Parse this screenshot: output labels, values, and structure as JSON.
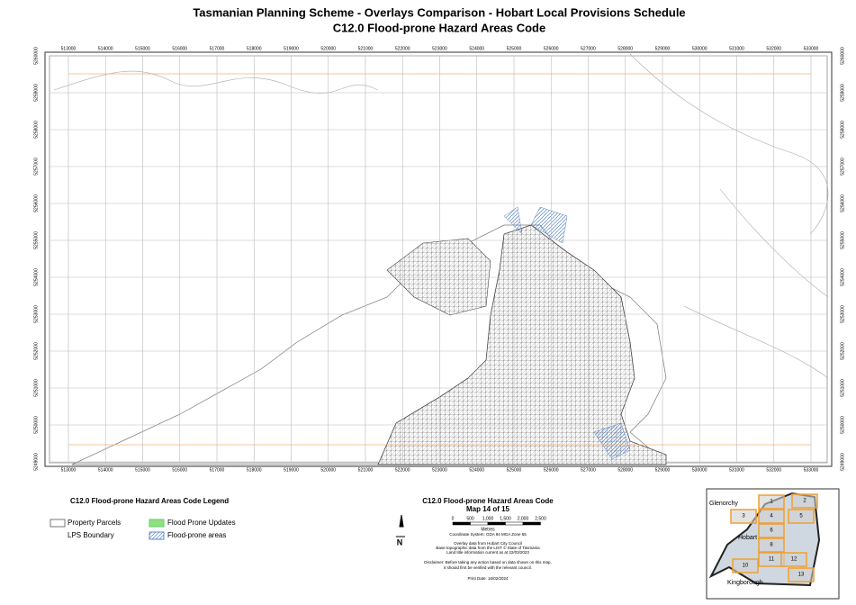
{
  "header": {
    "title": "Tasmanian Planning Scheme - Overlays Comparison - Hobart Local Provisions Schedule",
    "subtitle": "C12.0 Flood-prone Hazard Areas Code"
  },
  "map": {
    "x_labels": [
      "513000",
      "514000",
      "515000",
      "516000",
      "517000",
      "518000",
      "519000",
      "520000",
      "521000",
      "522000",
      "523000",
      "524000",
      "525000",
      "526000",
      "527000",
      "528000",
      "529000",
      "530000",
      "531000",
      "532000",
      "533000"
    ],
    "y_labels": [
      "5260000",
      "5259000",
      "5258000",
      "5257000",
      "5256000",
      "5255000",
      "5254000",
      "5253000",
      "5252000",
      "5251000",
      "5250000",
      "5249000"
    ]
  },
  "legend": {
    "title": "C12.0 Flood-prone Hazard Areas Code Legend",
    "items": [
      "Property Parcels",
      "LPS Boundary",
      "Flood Prone Updates",
      "Flood-prone areas"
    ]
  },
  "info": {
    "title": "C12.0 Flood-prone Hazard Areas Code",
    "map_number": "Map 14 of 15",
    "scale_labels": [
      "0",
      "500",
      "1,000",
      "1,500",
      "2,000",
      "2,500"
    ],
    "scale_unit": "Metres",
    "north": "N",
    "lines": [
      "Coordinate System: GDA 94 MGA Zone 55",
      "Overlay data from Hobart City Council",
      "Base topographic data from the LIST © State of Tasmania",
      "Land title information current as at 22/03/2023",
      "Disclaimer: Before taking any action based on data shown on this map,",
      "it should first be verified with the relevant council.",
      "Print Date: 16/02/2024"
    ]
  },
  "inset": {
    "places": [
      "Glenorchy",
      "Hobart",
      "Kingborough"
    ],
    "tiles": [
      "1",
      "2",
      "3",
      "4",
      "5",
      "6",
      "8",
      "11",
      "12",
      "10",
      "13"
    ]
  }
}
